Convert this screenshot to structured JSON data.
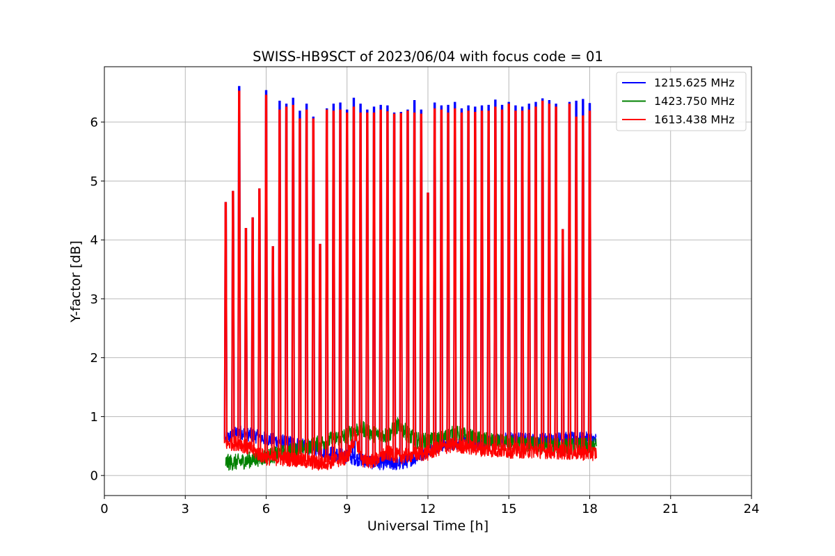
{
  "chart_data": {
    "type": "line",
    "title": "SWISS-HB9SCT of 2023/06/04 with focus code = 01",
    "xlabel": "Universal Time [h]",
    "ylabel": "Y-factor [dB]",
    "xlim": [
      0,
      24
    ],
    "ylim": [
      -0.34,
      6.94
    ],
    "xticks": [
      0,
      3,
      6,
      9,
      12,
      15,
      18,
      21,
      24
    ],
    "yticks": [
      0,
      1,
      2,
      3,
      4,
      5,
      6
    ],
    "grid": true,
    "legend_position": "top-right",
    "series": [
      {
        "name": "1215.625 MHz",
        "color": "#0000ff",
        "baseline": [
          [
            4.5,
            0.62
          ],
          [
            5,
            0.74
          ],
          [
            6,
            0.62
          ],
          [
            7,
            0.55
          ],
          [
            8,
            0.42
          ],
          [
            9,
            0.32
          ],
          [
            10,
            0.22
          ],
          [
            11,
            0.2
          ],
          [
            11.5,
            0.3
          ],
          [
            12,
            0.42
          ],
          [
            12.5,
            0.52
          ],
          [
            13,
            0.56
          ],
          [
            14,
            0.55
          ],
          [
            15,
            0.62
          ],
          [
            16,
            0.6
          ],
          [
            17,
            0.62
          ],
          [
            18,
            0.62
          ],
          [
            18.25,
            0.6
          ]
        ],
        "spikes": [
          [
            4.5,
            4.63
          ],
          [
            4.77,
            4.82
          ],
          [
            5.0,
            6.6
          ],
          [
            5.25,
            4.19
          ],
          [
            5.5,
            4.37
          ],
          [
            5.75,
            4.86
          ],
          [
            6.0,
            6.53
          ],
          [
            6.25,
            3.88
          ],
          [
            6.5,
            6.35
          ],
          [
            6.75,
            6.3
          ],
          [
            7.0,
            6.4
          ],
          [
            7.25,
            6.18
          ],
          [
            7.5,
            6.3
          ],
          [
            7.75,
            6.08
          ],
          [
            8.0,
            3.92
          ],
          [
            8.25,
            6.22
          ],
          [
            8.5,
            6.3
          ],
          [
            8.75,
            6.32
          ],
          [
            9.0,
            6.2
          ],
          [
            9.25,
            6.4
          ],
          [
            9.5,
            6.3
          ],
          [
            9.75,
            6.2
          ],
          [
            10.0,
            6.25
          ],
          [
            10.25,
            6.28
          ],
          [
            10.5,
            6.27
          ],
          [
            10.75,
            6.15
          ],
          [
            11.0,
            6.16
          ],
          [
            11.25,
            6.2
          ],
          [
            11.5,
            6.36
          ],
          [
            11.75,
            6.2
          ],
          [
            12.0,
            4.79
          ],
          [
            12.25,
            6.32
          ],
          [
            12.5,
            6.27
          ],
          [
            12.75,
            6.28
          ],
          [
            13.0,
            6.33
          ],
          [
            13.25,
            6.22
          ],
          [
            13.5,
            6.27
          ],
          [
            13.75,
            6.25
          ],
          [
            14.0,
            6.27
          ],
          [
            14.25,
            6.28
          ],
          [
            14.5,
            6.37
          ],
          [
            14.75,
            6.28
          ],
          [
            15.0,
            6.33
          ],
          [
            15.25,
            6.27
          ],
          [
            15.5,
            6.25
          ],
          [
            15.75,
            6.3
          ],
          [
            16.0,
            6.33
          ],
          [
            16.25,
            6.39
          ],
          [
            16.5,
            6.36
          ],
          [
            16.75,
            6.3
          ],
          [
            17.0,
            4.17
          ],
          [
            17.25,
            6.33
          ],
          [
            17.5,
            6.35
          ],
          [
            17.75,
            6.38
          ],
          [
            18.0,
            6.31
          ]
        ]
      },
      {
        "name": "1423.750 MHz",
        "color": "#008000",
        "baseline": [
          [
            4.5,
            0.22
          ],
          [
            5,
            0.23
          ],
          [
            6,
            0.32
          ],
          [
            7,
            0.42
          ],
          [
            8,
            0.55
          ],
          [
            8.5,
            0.62
          ],
          [
            9,
            0.68
          ],
          [
            9.5,
            0.82
          ],
          [
            10,
            0.7
          ],
          [
            10.5,
            0.68
          ],
          [
            10.9,
            0.86
          ],
          [
            11.5,
            0.6
          ],
          [
            12,
            0.58
          ],
          [
            12.5,
            0.62
          ],
          [
            13,
            0.72
          ],
          [
            14,
            0.6
          ],
          [
            15,
            0.55
          ],
          [
            16,
            0.52
          ],
          [
            17,
            0.5
          ],
          [
            18,
            0.5
          ],
          [
            18.25,
            0.5
          ]
        ],
        "spikes": []
      },
      {
        "name": "1613.438 MHz",
        "color": "#ff0000",
        "baseline": [
          [
            4.5,
            0.55
          ],
          [
            5,
            0.55
          ],
          [
            6,
            0.3
          ],
          [
            7,
            0.28
          ],
          [
            8,
            0.2
          ],
          [
            9,
            0.3
          ],
          [
            9.3,
            0.65
          ],
          [
            9.6,
            0.25
          ],
          [
            10,
            0.25
          ],
          [
            10.5,
            0.38
          ],
          [
            11,
            0.32
          ],
          [
            11.5,
            0.36
          ],
          [
            12,
            0.38
          ],
          [
            12.5,
            0.48
          ],
          [
            13,
            0.52
          ],
          [
            14,
            0.45
          ],
          [
            15,
            0.42
          ],
          [
            16,
            0.42
          ],
          [
            17,
            0.4
          ],
          [
            18,
            0.38
          ],
          [
            18.25,
            0.38
          ]
        ],
        "spikes": [
          [
            4.5,
            4.63
          ],
          [
            4.77,
            4.82
          ],
          [
            5.0,
            6.52
          ],
          [
            5.25,
            4.19
          ],
          [
            5.5,
            4.37
          ],
          [
            5.75,
            4.86
          ],
          [
            6.0,
            6.45
          ],
          [
            6.25,
            3.88
          ],
          [
            6.5,
            6.2
          ],
          [
            6.75,
            6.25
          ],
          [
            7.0,
            6.28
          ],
          [
            7.25,
            6.05
          ],
          [
            7.5,
            6.2
          ],
          [
            7.75,
            6.05
          ],
          [
            8.0,
            3.92
          ],
          [
            8.25,
            6.2
          ],
          [
            8.5,
            6.18
          ],
          [
            8.75,
            6.2
          ],
          [
            9.0,
            6.15
          ],
          [
            9.25,
            6.25
          ],
          [
            9.5,
            6.15
          ],
          [
            9.75,
            6.15
          ],
          [
            10.0,
            6.15
          ],
          [
            10.25,
            6.2
          ],
          [
            10.5,
            6.17
          ],
          [
            10.75,
            6.13
          ],
          [
            11.0,
            6.14
          ],
          [
            11.25,
            6.18
          ],
          [
            11.5,
            6.15
          ],
          [
            11.75,
            6.13
          ],
          [
            12.0,
            4.79
          ],
          [
            12.25,
            6.22
          ],
          [
            12.5,
            6.2
          ],
          [
            12.75,
            6.15
          ],
          [
            13.0,
            6.22
          ],
          [
            13.25,
            6.15
          ],
          [
            13.5,
            6.18
          ],
          [
            13.75,
            6.16
          ],
          [
            14.0,
            6.18
          ],
          [
            14.25,
            6.18
          ],
          [
            14.5,
            6.25
          ],
          [
            14.75,
            6.2
          ],
          [
            15.0,
            6.3
          ],
          [
            15.25,
            6.18
          ],
          [
            15.5,
            6.18
          ],
          [
            15.75,
            6.2
          ],
          [
            16.0,
            6.25
          ],
          [
            16.25,
            6.35
          ],
          [
            16.5,
            6.3
          ],
          [
            16.75,
            6.25
          ],
          [
            17.0,
            4.17
          ],
          [
            17.25,
            6.3
          ],
          [
            17.5,
            6.08
          ],
          [
            17.75,
            6.1
          ],
          [
            18.0,
            6.18
          ]
        ]
      }
    ]
  }
}
